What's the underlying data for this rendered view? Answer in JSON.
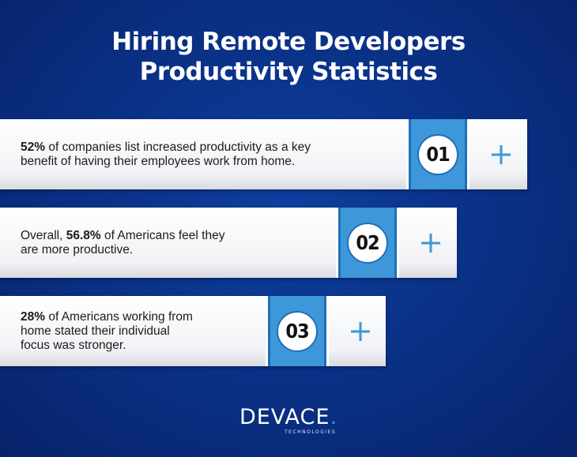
{
  "title": {
    "line1": "Hiring Remote Developers",
    "line2": "Productivity Statistics"
  },
  "stats": [
    {
      "number": "01",
      "parts": [
        {
          "text": "52%",
          "bold": true
        },
        {
          "text": " of companies list increased productivity as a key",
          "bold": false
        },
        {
          "text": "benefit of having their employees work from home.",
          "bold": false,
          "newline": true
        }
      ]
    },
    {
      "number": "02",
      "parts": [
        {
          "text": "Overall, ",
          "bold": false
        },
        {
          "text": "56.8%",
          "bold": true
        },
        {
          "text": " of Americans feel they",
          "bold": false
        },
        {
          "text": "are more productive.",
          "bold": false,
          "newline": true
        }
      ]
    },
    {
      "number": "03",
      "parts": [
        {
          "text": "28%",
          "bold": true
        },
        {
          "text": " of Americans working from",
          "bold": false
        },
        {
          "text": "home stated their individual",
          "bold": false,
          "newline": true
        },
        {
          "text": "focus was stronger.",
          "bold": false,
          "newline": true
        }
      ]
    }
  ],
  "plus_icon": "plus-icon",
  "logo": {
    "word": "DEVACE",
    "dot": ".",
    "sub": "TECHNOLOGIES"
  },
  "colors": {
    "background": "#0a3288",
    "accent": "#3d97d8",
    "card": "#f1f2f5"
  }
}
